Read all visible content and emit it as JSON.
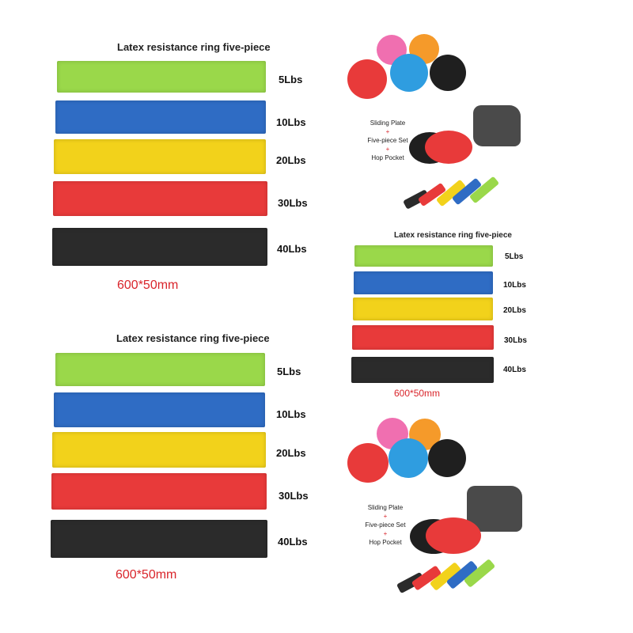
{
  "product": {
    "title": "Latex resistance ring five-piece",
    "size": "600*50mm",
    "bands": [
      {
        "label": "5Lbs",
        "color": "#9ad84a"
      },
      {
        "label": "10Lbs",
        "color": "#2f6cc4"
      },
      {
        "label": "20Lbs",
        "color": "#f2d21b"
      },
      {
        "label": "30Lbs",
        "color": "#e83a3a"
      },
      {
        "label": "40Lbs",
        "color": "#2b2b2b"
      }
    ]
  },
  "accessories": {
    "disc_colors": [
      "#f06fb0",
      "#f59a2a",
      "#e83a3a",
      "#2f9de0",
      "#1f1f1f"
    ],
    "combo_lines": [
      "Sliding Plate",
      "+",
      "Five-piece Set",
      "+",
      "Hop Pocket"
    ]
  }
}
